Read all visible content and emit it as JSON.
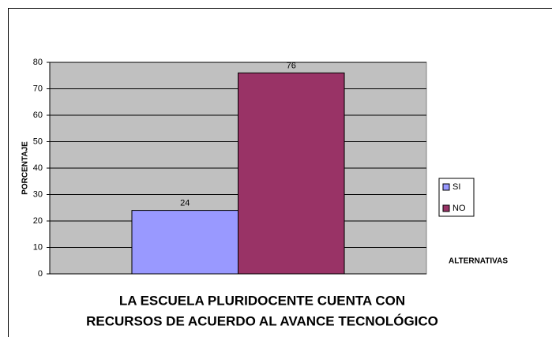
{
  "chart_data": {
    "type": "bar",
    "title": [
      "LA ESCUELA PLURIDOCENTE CUENTA CON",
      "RECURSOS DE ACUERDO AL AVANCE TECNOLÓGICO"
    ],
    "x_label": "ALTERNATIVAS",
    "y_label": "PORCENTAJE",
    "categories": [
      null
    ],
    "series": [
      {
        "name": "SI",
        "color": "#9999ff",
        "values": [
          24
        ]
      },
      {
        "name": "NO",
        "color": "#993366",
        "values": [
          76
        ]
      }
    ],
    "ylim": [
      0,
      80
    ],
    "yticks": [
      0,
      10,
      20,
      30,
      40,
      50,
      60,
      70,
      80
    ],
    "grid": true,
    "legend": "right",
    "plot_background": "#c0c0c0"
  }
}
